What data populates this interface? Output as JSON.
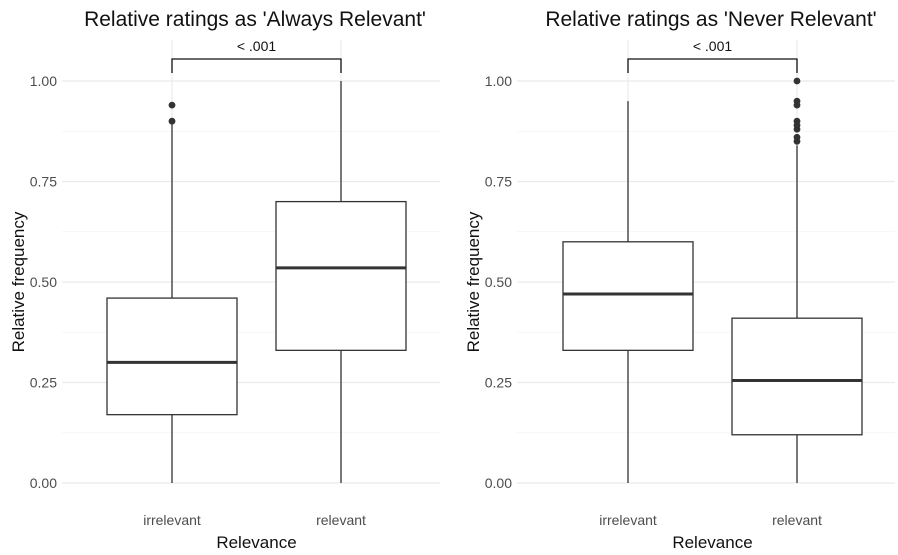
{
  "chart_data": [
    {
      "type": "boxplot",
      "title": "Relative ratings as 'Always Relevant'",
      "xlabel": "Relevance",
      "ylabel": "Relative frequency",
      "categories": [
        "irrelevant",
        "relevant"
      ],
      "ylim": [
        0,
        1.05
      ],
      "yticks": [
        "0.00",
        "0.25",
        "0.50",
        "0.75",
        "1.00"
      ],
      "boxes": [
        {
          "category": "irrelevant",
          "min": 0.0,
          "q1": 0.17,
          "median": 0.3,
          "q3": 0.46,
          "max": 0.9,
          "outliers": [
            0.9,
            0.94
          ]
        },
        {
          "category": "relevant",
          "min": 0.0,
          "q1": 0.33,
          "median": 0.535,
          "q3": 0.7,
          "max": 1.0,
          "outliers": []
        }
      ],
      "annotation": {
        "text": "< .001",
        "from": "irrelevant",
        "to": "relevant"
      },
      "grid": true
    },
    {
      "type": "boxplot",
      "title": "Relative ratings as 'Never Relevant'",
      "xlabel": "Relevance",
      "ylabel": "Relative frequency",
      "categories": [
        "irrelevant",
        "relevant"
      ],
      "ylim": [
        0,
        1.05
      ],
      "yticks": [
        "0.00",
        "0.25",
        "0.50",
        "0.75",
        "1.00"
      ],
      "boxes": [
        {
          "category": "irrelevant",
          "min": 0.0,
          "q1": 0.33,
          "median": 0.47,
          "q3": 0.6,
          "max": 0.95,
          "outliers": []
        },
        {
          "category": "relevant",
          "min": 0.0,
          "q1": 0.12,
          "median": 0.255,
          "q3": 0.41,
          "max": 0.84,
          "outliers": [
            0.85,
            0.86,
            0.88,
            0.89,
            0.9,
            0.94,
            0.95,
            1.0
          ]
        }
      ],
      "annotation": {
        "text": "< .001",
        "from": "irrelevant",
        "to": "relevant"
      },
      "grid": true
    }
  ]
}
